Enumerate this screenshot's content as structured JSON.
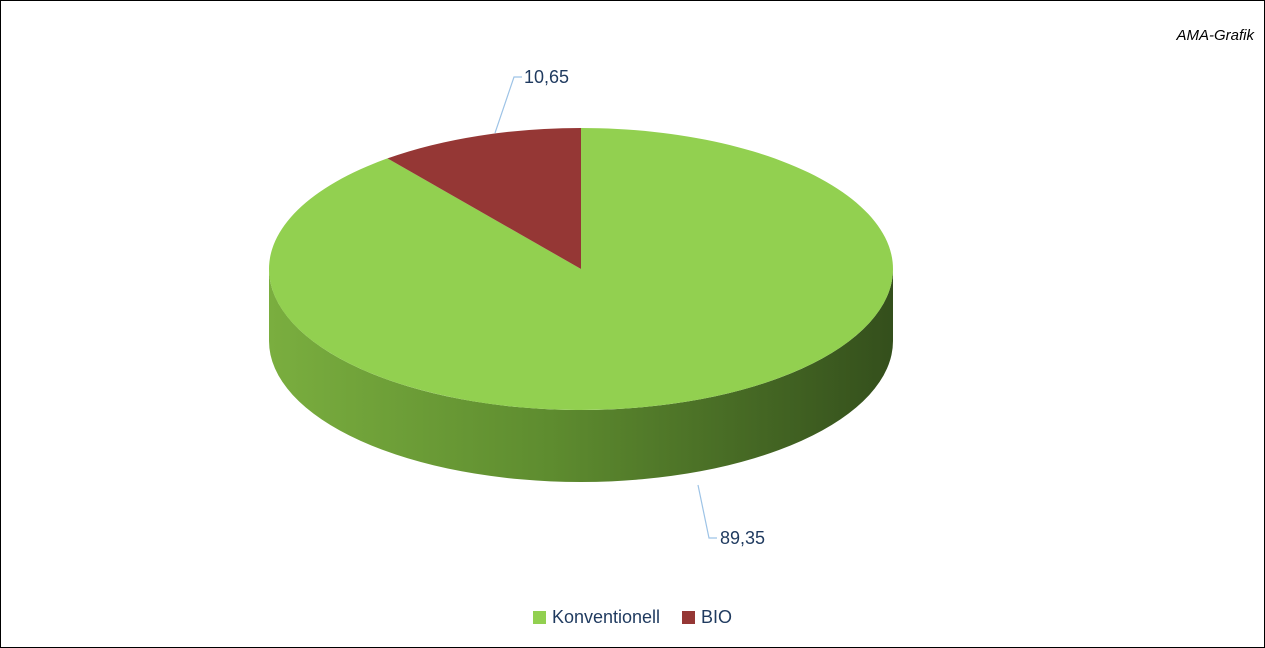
{
  "source": "AMA-Grafik",
  "chart_data": {
    "type": "pie",
    "title": "",
    "style": "3d",
    "legend_position": "bottom",
    "slices": [
      {
        "name": "Konventionell",
        "value": 89.35,
        "label": "89,35",
        "color": "#92d050",
        "side_color": "#6a9a38",
        "side_dark": "#344f1c"
      },
      {
        "name": "BIO",
        "value": 10.65,
        "label": "10,65",
        "color": "#953735",
        "side_color": "#6b2422",
        "side_dark": "#4a1615"
      }
    ]
  }
}
